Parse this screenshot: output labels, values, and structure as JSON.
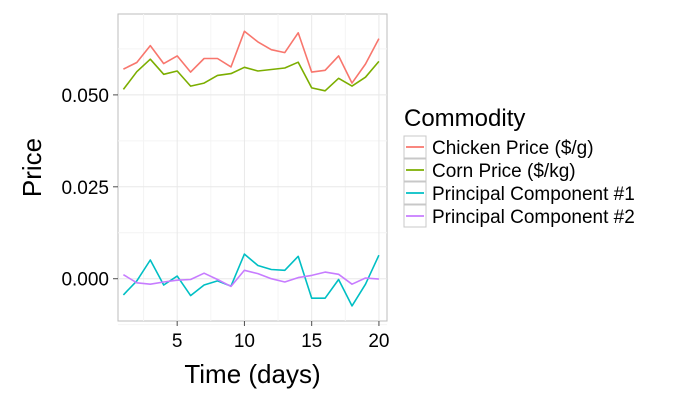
{
  "chart_data": {
    "type": "line",
    "xlabel": "Time (days)",
    "ylabel": "Price",
    "xlim": [
      0.6,
      20.6
    ],
    "ylim": [
      -0.0115,
      0.072
    ],
    "x_ticks": [
      5,
      10,
      15,
      20
    ],
    "x_tick_labels": [
      "5",
      "10",
      "15",
      "20"
    ],
    "y_ticks": [
      0.0,
      0.025,
      0.05
    ],
    "y_tick_labels": [
      "0.000",
      "0.025",
      "0.050"
    ],
    "x_minor_ticks": [
      2.5,
      7.5,
      12.5,
      17.5
    ],
    "y_minor_ticks": [
      -0.0125,
      0.0125,
      0.0375,
      0.0625
    ],
    "grid": true,
    "legend": {
      "title": "Commodity",
      "placement": "right"
    },
    "x": [
      1,
      2,
      3,
      4,
      5,
      6,
      7,
      8,
      9,
      10,
      11,
      12,
      13,
      14,
      15,
      16,
      17,
      18,
      19,
      20
    ],
    "series": [
      {
        "name": "Chicken Price ($/g)",
        "color": "#F8766D",
        "values": [
          0.057,
          0.0588,
          0.0634,
          0.0585,
          0.0606,
          0.0562,
          0.0599,
          0.0599,
          0.0576,
          0.0673,
          0.0644,
          0.0623,
          0.0615,
          0.0669,
          0.0562,
          0.0567,
          0.0606,
          0.0532,
          0.0584,
          0.0653
        ]
      },
      {
        "name": "Corn Price ($/kg)",
        "color": "#7CAE00",
        "values": [
          0.0515,
          0.0563,
          0.0597,
          0.0556,
          0.0565,
          0.0524,
          0.0532,
          0.0553,
          0.0558,
          0.0575,
          0.0565,
          0.0569,
          0.0573,
          0.0589,
          0.0519,
          0.0511,
          0.0545,
          0.0524,
          0.0548,
          0.0591
        ]
      },
      {
        "name": "Principal Component #1",
        "color": "#00BFC4",
        "values": [
          -0.0044,
          -0.0006,
          0.0051,
          -0.0017,
          0.0007,
          -0.0046,
          -0.0017,
          -0.0006,
          -0.002,
          0.0067,
          0.0036,
          0.0025,
          0.0023,
          0.0061,
          -0.0053,
          -0.0053,
          -0.0002,
          -0.0074,
          -0.0015,
          0.0064
        ]
      },
      {
        "name": "Principal Component #2",
        "color": "#C77CFF",
        "values": [
          0.0011,
          -0.0011,
          -0.0015,
          -0.0009,
          -0.0004,
          -0.0002,
          0.0015,
          -0.0002,
          -0.0021,
          0.0023,
          0.0014,
          0.0,
          -0.0009,
          0.0003,
          0.0009,
          0.0018,
          0.0012,
          -0.0015,
          0.0002,
          -0.0001
        ]
      }
    ]
  }
}
